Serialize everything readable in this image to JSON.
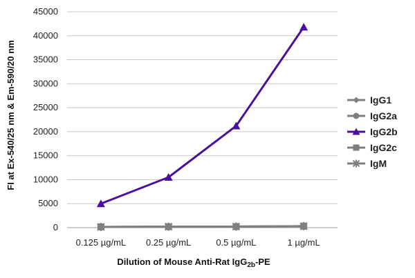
{
  "chart_data": {
    "type": "line",
    "categories": [
      "0.125 µg/mL",
      "0.25 µg/mL",
      "0.5 µg/mL",
      "1 µg/mL"
    ],
    "ylabel": "FI at Ex-540/25 nm & Em-590/20 nm",
    "xlabel_main": "Dilution of Mouse Anti-Rat IgG",
    "xlabel_sub": "2b",
    "xlabel_suffix": "-PE",
    "ylim": [
      0,
      45000
    ],
    "yticks": [
      0,
      5000,
      10000,
      15000,
      20000,
      25000,
      30000,
      35000,
      40000,
      45000
    ],
    "grid": "horizontal",
    "legend_position": "right",
    "series": [
      {
        "name": "IgG1",
        "values": [
          150,
          200,
          220,
          300
        ],
        "color": "#7f7f7f",
        "marker": "diamond"
      },
      {
        "name": "IgG2a",
        "values": [
          150,
          200,
          220,
          300
        ],
        "color": "#7f7f7f",
        "marker": "circle"
      },
      {
        "name": "IgG2b",
        "values": [
          5000,
          10500,
          21200,
          41800
        ],
        "color": "#4b0fa0",
        "marker": "triangle"
      },
      {
        "name": "IgG2c",
        "values": [
          150,
          200,
          220,
          300
        ],
        "color": "#7f7f7f",
        "marker": "square"
      },
      {
        "name": "IgM",
        "values": [
          150,
          200,
          220,
          300
        ],
        "color": "#7f7f7f",
        "marker": "star"
      }
    ]
  }
}
